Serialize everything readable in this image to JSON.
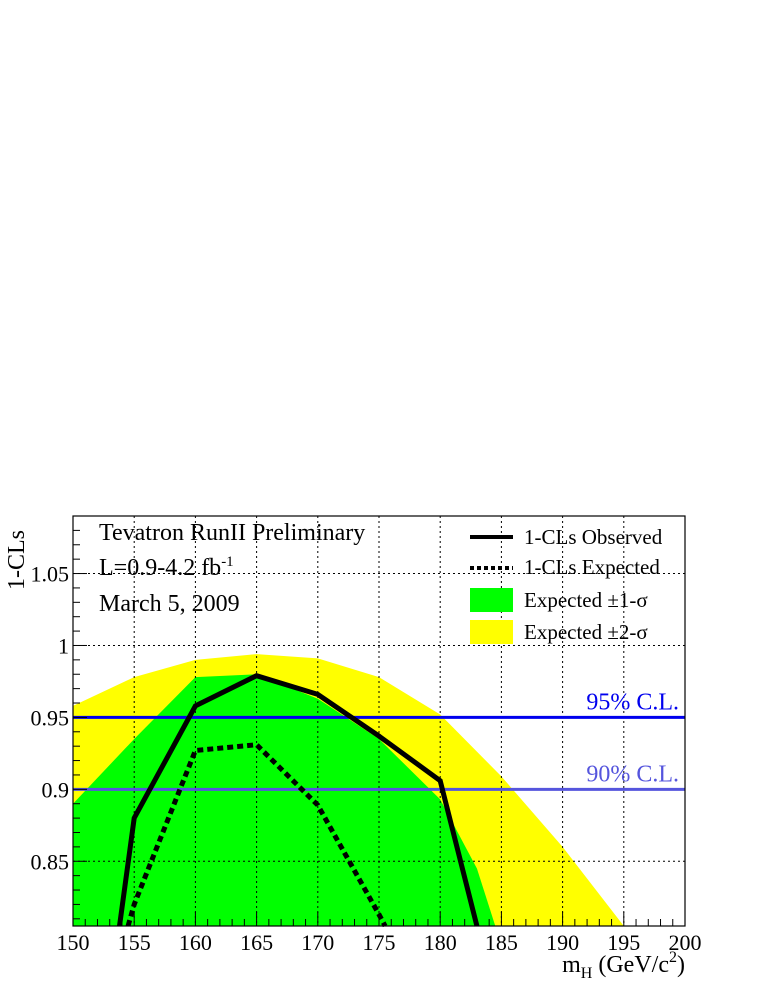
{
  "chart_data": {
    "type": "line",
    "x_range": [
      150,
      200
    ],
    "y_range": [
      0.805,
      1.09
    ],
    "xticks": [
      "150",
      "155",
      "160",
      "165",
      "170",
      "175",
      "180",
      "185",
      "190",
      "195",
      "200"
    ],
    "yticks": [
      {
        "value": 0.85,
        "label": "0.85"
      },
      {
        "value": 0.9,
        "label": "0.9"
      },
      {
        "value": 0.95,
        "label": "0.95"
      },
      {
        "value": 1.0,
        "label": "1"
      },
      {
        "value": 1.05,
        "label": "1.05"
      }
    ],
    "grid": true,
    "xlabel": {
      "main": "m",
      "sub": "H",
      "unit": " (GeV/c",
      "sup": "2",
      "close": ")"
    },
    "ylabel": "1-CLs",
    "info": {
      "line1": "Tevatron RunII Preliminary",
      "lumi_main": "L=0.9-4.2 fb",
      "lumi_sup": "-1",
      "date": "March 5, 2009"
    },
    "legend": {
      "observed": "1-CLs Observed",
      "expected": "1-CLs Expected",
      "band1": "Expected ±1-σ",
      "band2": "Expected ±2-σ"
    },
    "band2": {
      "color": "#ffff00",
      "upper": [
        [
          150,
          0.958
        ],
        [
          155,
          0.978
        ],
        [
          160,
          0.99
        ],
        [
          165,
          0.994
        ],
        [
          170,
          0.991
        ],
        [
          175,
          0.978
        ],
        [
          180,
          0.952
        ],
        [
          185,
          0.909
        ],
        [
          190,
          0.86
        ],
        [
          195,
          0.805
        ]
      ],
      "lower": [
        [
          150,
          0.805
        ]
      ]
    },
    "band1": {
      "color": "#00ff00",
      "upper": [
        [
          150,
          0.89
        ],
        [
          155,
          0.935
        ],
        [
          160,
          0.978
        ],
        [
          165,
          0.98
        ],
        [
          170,
          0.963
        ],
        [
          175,
          0.935
        ],
        [
          180,
          0.893
        ],
        [
          183,
          0.845
        ],
        [
          184.5,
          0.805
        ]
      ],
      "lower": [
        [
          150,
          0.805
        ]
      ]
    },
    "observed": [
      [
        153.8,
        0.805
      ],
      [
        155,
        0.88
      ],
      [
        160,
        0.958
      ],
      [
        165,
        0.979
      ],
      [
        170,
        0.966
      ],
      [
        175,
        0.937
      ],
      [
        180,
        0.906
      ],
      [
        183,
        0.805
      ]
    ],
    "expected": [
      [
        154.5,
        0.805
      ],
      [
        155,
        0.82
      ],
      [
        160,
        0.927
      ],
      [
        165,
        0.931
      ],
      [
        170,
        0.889
      ],
      [
        175,
        0.813
      ],
      [
        175.5,
        0.805
      ]
    ],
    "ref_lines": [
      {
        "y": 0.95,
        "label": "95% C.L.",
        "color": "#0000ee"
      },
      {
        "y": 0.9,
        "label": "90% C.L.",
        "color": "#5555dd"
      }
    ]
  }
}
